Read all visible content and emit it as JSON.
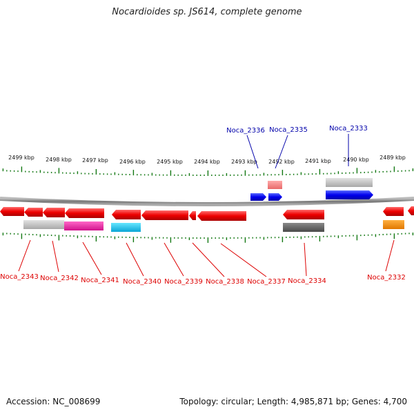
{
  "title": "Nocardioides sp. JS614, complete genome",
  "footer": {
    "accession": "Accession: NC_008699",
    "topology": "Topology: circular; Length: 4,985,871 bp; Genes: 4,700"
  },
  "colors": {
    "top_label": "#0000aa",
    "bottom_label": "#dd0000",
    "tick": "#117711",
    "backbone": "#888888"
  },
  "scale_labels": [
    "2499 kbp",
    "2498 kbp",
    "2497 kbp",
    "2496 kbp",
    "2495 kbp",
    "2494 kbp",
    "2493 kbp",
    "2492 kbp",
    "2491 kbp",
    "2490 kbp",
    "2489 kbp"
  ],
  "top_gene_labels": [
    "Noca_2336",
    "Noca_2335",
    "Noca_2333"
  ],
  "bottom_gene_labels": [
    "Noca_2343",
    "Noca_2342",
    "Noca_2341",
    "Noca_2340",
    "Noca_2339",
    "Noca_2338",
    "Noca_2337",
    "Noca_2334",
    "Noca_2332"
  ]
}
